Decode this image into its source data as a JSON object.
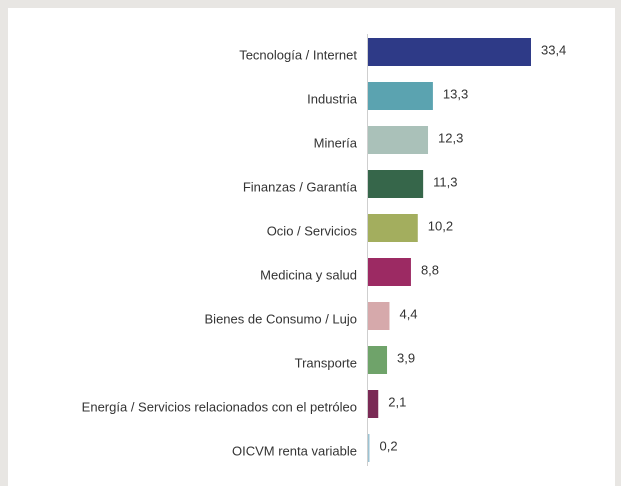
{
  "chart_data": {
    "type": "barh",
    "categories": [
      "Tecnología / Internet",
      "Industria",
      "Minería",
      "Finanzas / Garantía",
      "Ocio / Servicios",
      "Medicina y salud",
      "Bienes de Consumo / Lujo",
      "Transporte",
      "Energía / Servicios relacionados con el petróleo",
      "OICVM renta variable"
    ],
    "values": [
      33.4,
      13.3,
      12.3,
      11.3,
      10.2,
      8.8,
      4.4,
      3.9,
      2.1,
      0.2
    ],
    "value_labels": [
      "33,4",
      "13,3",
      "12,3",
      "11,3",
      "10,2",
      "8,8",
      "4,4",
      "3,9",
      "2,1",
      "0,2"
    ],
    "colors": [
      "#2e3a87",
      "#5ba3b0",
      "#aac1b9",
      "#36664a",
      "#a3ae5e",
      "#9c2a63",
      "#d6a9ab",
      "#6fa36a",
      "#7a2a55",
      "#9cc3d3"
    ]
  }
}
